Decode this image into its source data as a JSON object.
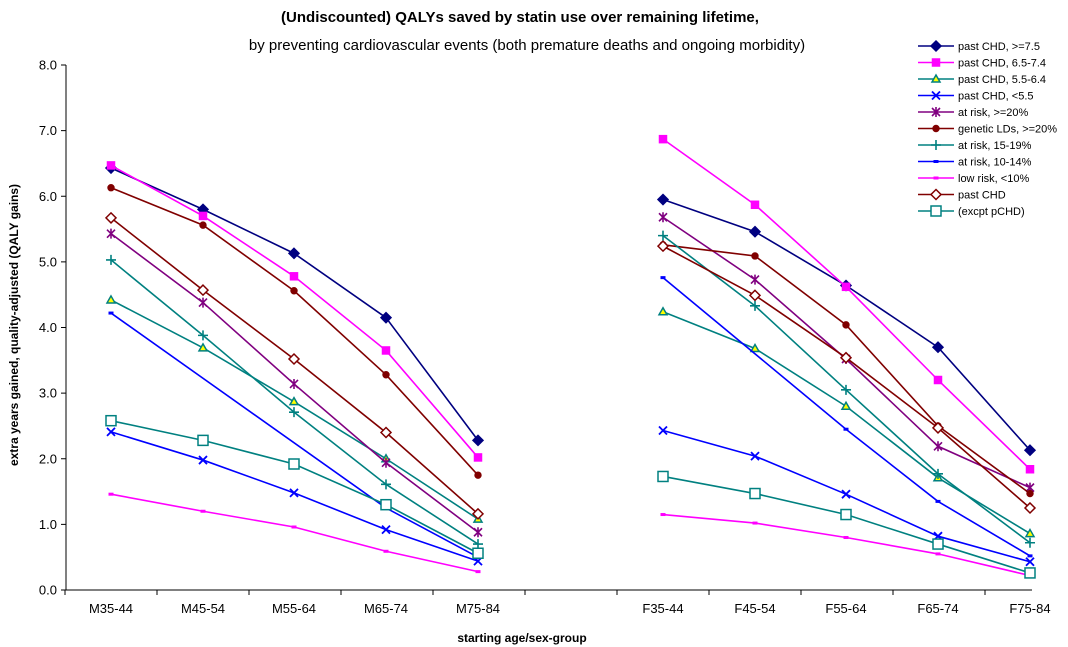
{
  "chart_data": {
    "type": "line",
    "title": "(Undiscounted) QALYs saved by statin use over remaining lifetime,",
    "subtitle": "by preventing cardiovascular events (both premature deaths and ongoing morbidity)",
    "xlabel": "starting age/sex-group",
    "ylabel": "extra years gained, quality-adjusted (QALY gains)",
    "ylim": [
      0,
      8
    ],
    "yticks": [
      "0.0",
      "1.0",
      "2.0",
      "3.0",
      "4.0",
      "5.0",
      "6.0",
      "7.0",
      "8.0"
    ],
    "grid": false,
    "legend_position": "top-right",
    "categories": [
      "M35-44",
      "M45-54",
      "M55-64",
      "M65-74",
      "M75-84",
      "F35-44",
      "F45-54",
      "F55-64",
      "F65-74",
      "F75-84"
    ],
    "series": [
      {
        "name": "past CHD, >=7.5",
        "color": "#000080",
        "marker": "diamond-filled",
        "values": [
          6.43,
          5.8,
          5.13,
          4.15,
          2.28,
          5.95,
          5.46,
          4.64,
          3.7,
          2.13
        ]
      },
      {
        "name": "past CHD, 6.5-7.4",
        "color": "#ff00ff",
        "marker": "square-filled",
        "values": [
          6.47,
          5.7,
          4.78,
          3.65,
          2.02,
          6.87,
          5.87,
          4.62,
          3.2,
          1.84
        ]
      },
      {
        "name": "past CHD, 5.5-6.4",
        "color": "#008080",
        "marker": "triangle-open",
        "values": [
          4.42,
          3.69,
          2.87,
          2.0,
          1.08,
          4.24,
          3.68,
          2.8,
          1.71,
          0.86
        ]
      },
      {
        "name": "past CHD, <5.5",
        "color": "#0000ff",
        "marker": "x",
        "values": [
          2.41,
          1.98,
          1.48,
          0.92,
          0.44,
          2.43,
          2.04,
          1.46,
          0.82,
          0.43
        ]
      },
      {
        "name": "at risk, >=20%",
        "color": "#800080",
        "marker": "star",
        "values": [
          5.43,
          4.38,
          3.14,
          1.94,
          0.88,
          5.68,
          4.73,
          3.52,
          2.19,
          1.56
        ]
      },
      {
        "name": "genetic LDs, >=20%",
        "color": "#800000",
        "marker": "circle-filled",
        "values": [
          6.13,
          5.56,
          4.56,
          3.28,
          1.75,
          5.26,
          5.09,
          4.04,
          2.5,
          1.47
        ]
      },
      {
        "name": "at risk, 15-19%",
        "color": "#008080",
        "marker": "plus",
        "values": [
          5.03,
          3.88,
          2.71,
          1.61,
          0.7,
          5.4,
          4.33,
          3.05,
          1.77,
          0.72
        ]
      },
      {
        "name": "at risk, 10-14%",
        "color": "#0000ff",
        "marker": "dash",
        "values": [
          4.22,
          null,
          null,
          1.25,
          0.5,
          4.76,
          null,
          2.45,
          1.35,
          0.52
        ]
      },
      {
        "name": "low risk, <10%",
        "color": "#ff00ff",
        "marker": "dash",
        "values": [
          1.46,
          1.2,
          0.96,
          0.59,
          0.28,
          1.15,
          1.02,
          0.8,
          0.55,
          0.22
        ]
      },
      {
        "name": "past CHD",
        "color": "#800000",
        "marker": "diamond-open",
        "values": [
          5.67,
          4.57,
          3.52,
          2.4,
          1.16,
          5.24,
          4.49,
          3.54,
          2.47,
          1.25
        ]
      },
      {
        "name": "(excpt pCHD)",
        "color": "#008080",
        "marker": "square-open",
        "values": [
          2.58,
          2.28,
          1.92,
          1.3,
          0.56,
          1.73,
          1.47,
          1.15,
          0.7,
          0.26
        ]
      }
    ]
  }
}
